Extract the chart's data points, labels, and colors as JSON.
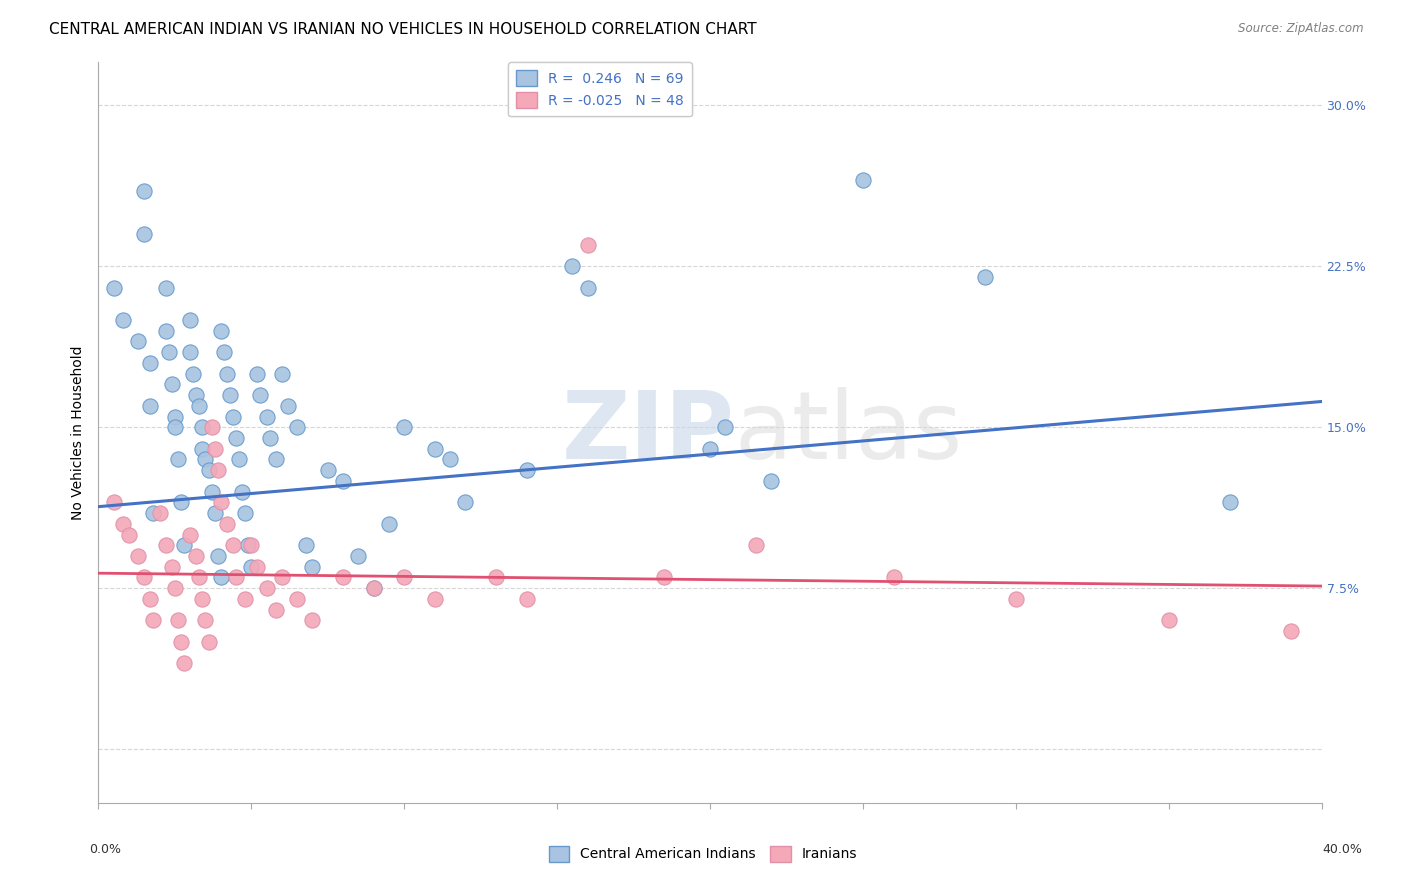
{
  "title": "CENTRAL AMERICAN INDIAN VS IRANIAN NO VEHICLES IN HOUSEHOLD CORRELATION CHART",
  "source": "Source: ZipAtlas.com",
  "ylabel": "No Vehicles in Household",
  "xlim": [
    0.0,
    0.4
  ],
  "ylim": [
    -0.025,
    0.32
  ],
  "blue_color": "#a8c4e0",
  "pink_color": "#f4a8b8",
  "blue_edge_color": "#6699cc",
  "pink_edge_color": "#e090a8",
  "blue_line_color": "#4472c4",
  "pink_line_color": "#e05070",
  "watermark_zip": "ZIP",
  "watermark_atlas": "atlas",
  "legend1_text": "R =  0.246   N = 69",
  "legend2_text": "R = -0.025   N = 48",
  "bottom_legend1": "Central American Indians",
  "bottom_legend2": "Iranians",
  "blue_regression_y0": 0.113,
  "blue_regression_y1": 0.162,
  "pink_regression_y0": 0.082,
  "pink_regression_y1": 0.076,
  "blue_points_x": [
    0.005,
    0.008,
    0.013,
    0.015,
    0.015,
    0.017,
    0.017,
    0.018,
    0.022,
    0.022,
    0.023,
    0.024,
    0.025,
    0.025,
    0.026,
    0.027,
    0.028,
    0.03,
    0.03,
    0.031,
    0.032,
    0.033,
    0.034,
    0.034,
    0.035,
    0.036,
    0.037,
    0.038,
    0.039,
    0.04,
    0.04,
    0.041,
    0.042,
    0.043,
    0.044,
    0.045,
    0.046,
    0.047,
    0.048,
    0.049,
    0.05,
    0.052,
    0.053,
    0.055,
    0.056,
    0.058,
    0.06,
    0.062,
    0.065,
    0.068,
    0.07,
    0.075,
    0.08,
    0.085,
    0.09,
    0.095,
    0.1,
    0.11,
    0.115,
    0.12,
    0.14,
    0.155,
    0.16,
    0.2,
    0.205,
    0.22,
    0.25,
    0.29,
    0.37
  ],
  "blue_points_y": [
    0.215,
    0.2,
    0.19,
    0.26,
    0.24,
    0.18,
    0.16,
    0.11,
    0.215,
    0.195,
    0.185,
    0.17,
    0.155,
    0.15,
    0.135,
    0.115,
    0.095,
    0.2,
    0.185,
    0.175,
    0.165,
    0.16,
    0.15,
    0.14,
    0.135,
    0.13,
    0.12,
    0.11,
    0.09,
    0.08,
    0.195,
    0.185,
    0.175,
    0.165,
    0.155,
    0.145,
    0.135,
    0.12,
    0.11,
    0.095,
    0.085,
    0.175,
    0.165,
    0.155,
    0.145,
    0.135,
    0.175,
    0.16,
    0.15,
    0.095,
    0.085,
    0.13,
    0.125,
    0.09,
    0.075,
    0.105,
    0.15,
    0.14,
    0.135,
    0.115,
    0.13,
    0.225,
    0.215,
    0.14,
    0.15,
    0.125,
    0.265,
    0.22,
    0.115
  ],
  "pink_points_x": [
    0.005,
    0.008,
    0.01,
    0.013,
    0.015,
    0.017,
    0.018,
    0.02,
    0.022,
    0.024,
    0.025,
    0.026,
    0.027,
    0.028,
    0.03,
    0.032,
    0.033,
    0.034,
    0.035,
    0.036,
    0.037,
    0.038,
    0.039,
    0.04,
    0.042,
    0.044,
    0.045,
    0.048,
    0.05,
    0.052,
    0.055,
    0.058,
    0.06,
    0.065,
    0.07,
    0.08,
    0.09,
    0.1,
    0.11,
    0.13,
    0.14,
    0.16,
    0.185,
    0.215,
    0.26,
    0.3,
    0.35,
    0.39
  ],
  "pink_points_y": [
    0.115,
    0.105,
    0.1,
    0.09,
    0.08,
    0.07,
    0.06,
    0.11,
    0.095,
    0.085,
    0.075,
    0.06,
    0.05,
    0.04,
    0.1,
    0.09,
    0.08,
    0.07,
    0.06,
    0.05,
    0.15,
    0.14,
    0.13,
    0.115,
    0.105,
    0.095,
    0.08,
    0.07,
    0.095,
    0.085,
    0.075,
    0.065,
    0.08,
    0.07,
    0.06,
    0.08,
    0.075,
    0.08,
    0.07,
    0.08,
    0.07,
    0.235,
    0.08,
    0.095,
    0.08,
    0.07,
    0.06,
    0.055
  ],
  "marker_size": 120,
  "marker_lw": 0.8,
  "title_fontsize": 11,
  "axis_label_fontsize": 10,
  "tick_fontsize": 9,
  "legend_fontsize": 10,
  "ytick_positions": [
    0.0,
    0.075,
    0.15,
    0.225,
    0.3
  ],
  "ytick_labels": [
    "",
    "7.5%",
    "15.0%",
    "22.5%",
    "30.0%"
  ],
  "xtick_positions": [
    0.0,
    0.05,
    0.1,
    0.15,
    0.2,
    0.25,
    0.3,
    0.35,
    0.4
  ],
  "grid_color": "#cccccc",
  "grid_alpha": 0.8
}
